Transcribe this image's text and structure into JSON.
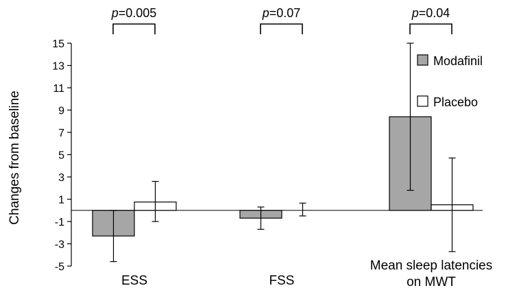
{
  "chart_data": {
    "type": "bar",
    "ylabel": "Changes from baseline",
    "ylim": [
      -5,
      15
    ],
    "yticks": [
      15,
      13,
      11,
      9,
      7,
      5,
      3,
      1,
      -1,
      -3,
      -5
    ],
    "categories": [
      {
        "label_lines": [
          "ESS"
        ]
      },
      {
        "label_lines": [
          "FSS"
        ]
      },
      {
        "label_lines": [
          "Mean sleep latencies",
          "on MWT"
        ]
      }
    ],
    "series": [
      {
        "name": "Modafinil",
        "color": "#a6a6a6",
        "values": [
          -2.3,
          -0.7,
          8.4
        ],
        "err_low": [
          -4.6,
          -1.7,
          1.8
        ],
        "err_high": [
          0.0,
          0.3,
          15.0
        ]
      },
      {
        "name": "Placebo",
        "color": "#ffffff",
        "values": [
          0.75,
          null,
          0.5
        ],
        "err_low": [
          -1.0,
          -0.5,
          -3.7
        ],
        "err_high": [
          2.6,
          0.65,
          4.7
        ]
      }
    ],
    "pvalues": [
      {
        "prefix": "p",
        "text": "=0.005"
      },
      {
        "prefix": "p",
        "text": "=0.07"
      },
      {
        "prefix": "p",
        "text": "=0.04"
      }
    ],
    "legend_position": "top-right",
    "grid": false
  }
}
